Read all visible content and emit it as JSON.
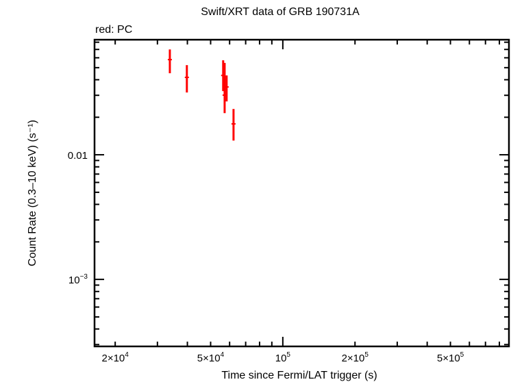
{
  "chart_data": {
    "type": "scatter",
    "title": "Swift/XRT data of GRB 190731A",
    "subtitle": "red: PC",
    "xlabel": "Time since Fermi/LAT trigger (s)",
    "ylabel": "Count Rate (0.3–10 keV) (s⁻¹)",
    "xscale": "log",
    "yscale": "log",
    "xlim": [
      16400,
      877000
    ],
    "ylim": [
      0.00029,
      0.0838
    ],
    "grid": false,
    "x_tick_labels": [
      {
        "value": 20000,
        "mant": "2×10",
        "exp": "4"
      },
      {
        "value": 50000,
        "mant": "5×10",
        "exp": "4"
      },
      {
        "value": 100000,
        "mant": "10",
        "exp": "5"
      },
      {
        "value": 200000,
        "mant": "2×10",
        "exp": "5"
      },
      {
        "value": 500000,
        "mant": "5×10",
        "exp": "5"
      }
    ],
    "y_tick_labels": [
      {
        "value": 0.01,
        "mant": "0.01",
        "exp": ""
      },
      {
        "value": 0.001,
        "mant": "10",
        "exp": "−3"
      }
    ],
    "series": [
      {
        "name": "PC",
        "color": "#ff0000",
        "points": [
          {
            "x": 33800,
            "y": 0.058,
            "ylo": 0.0451,
            "yhi": 0.07
          },
          {
            "x": 39800,
            "y": 0.0418,
            "ylo": 0.0316,
            "yhi": 0.0524
          },
          {
            "x": 56400,
            "y": 0.0433,
            "ylo": 0.0324,
            "yhi": 0.0573
          },
          {
            "x": 57200,
            "y": 0.0301,
            "ylo": 0.0216,
            "yhi": 0.0546
          },
          {
            "x": 58300,
            "y": 0.035,
            "ylo": 0.0268,
            "yhi": 0.0433
          },
          {
            "x": 62300,
            "y": 0.0177,
            "ylo": 0.013,
            "yhi": 0.0233
          }
        ]
      }
    ]
  }
}
